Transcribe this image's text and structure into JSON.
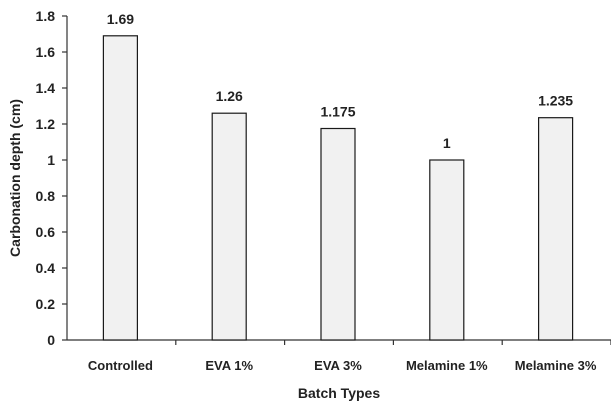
{
  "chart_data": {
    "type": "bar",
    "categories": [
      "Controlled",
      "EVA 1%",
      "EVA 3%",
      "Melamine 1%",
      "Melamine 3%"
    ],
    "values": [
      1.69,
      1.26,
      1.175,
      1,
      1.235
    ],
    "data_labels": [
      "1.69",
      "1.26",
      "1.175",
      "1",
      "1.235"
    ],
    "title": "",
    "xlabel": "Batch Types",
    "ylabel": "Carbonation depth (cm)",
    "ylim": [
      0,
      1.8
    ],
    "yticks": [
      0,
      0.2,
      0.4,
      0.6,
      0.8,
      1,
      1.2,
      1.4,
      1.6,
      1.8
    ],
    "ytick_labels": [
      "0",
      "0.2",
      "0.4",
      "0.6",
      "0.8",
      "1",
      "1.2",
      "1.4",
      "1.6",
      "1.8"
    ],
    "grid": false,
    "legend": "none",
    "colors": {
      "bar_fill": "#f1f1f1",
      "bar_stroke": "#1a1a1a",
      "axis": "#333333"
    }
  }
}
